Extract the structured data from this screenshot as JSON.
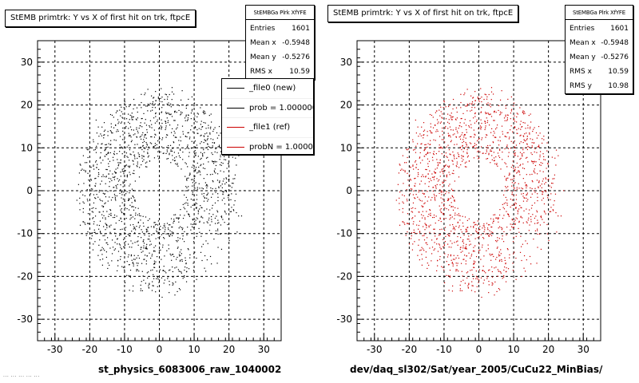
{
  "chart_data": [
    {
      "type": "scatter",
      "title": "StEMB primtrk: Y vs X of first hit on trk, ftpcE",
      "xlabel": "st_physics_6083006_raw_1040002",
      "ylabel": "",
      "xlim": [
        -35,
        35
      ],
      "ylim": [
        -35,
        35
      ],
      "xticks": [
        "-30",
        "-20",
        "-10",
        "0",
        "10",
        "20",
        "30"
      ],
      "yticks": [
        "-30",
        "-20",
        "-10",
        "0",
        "10",
        "20",
        "30"
      ],
      "grid": true,
      "marker_color": "#000000",
      "stats": {
        "name": "StEMBGa Plrk XfYFE",
        "rows": [
          {
            "label": "Entries",
            "value": "1601"
          },
          {
            "label": "Mean x",
            "value": "-0.5948"
          },
          {
            "label": "Mean y",
            "value": "-0.5276"
          },
          {
            "label": "RMS x",
            "value": "10.59"
          }
        ]
      },
      "legend": [
        {
          "label": "_file0 (new)",
          "color": "#000000"
        },
        {
          "label": "prob = 1.000000",
          "color": "#000000"
        },
        {
          "label": "_file1 (ref)",
          "color": "#cc0000"
        },
        {
          "label": "probN = 1.000000",
          "color": "#cc0000"
        }
      ],
      "legend_position": "top-right"
    },
    {
      "type": "scatter",
      "title": "StEMB primtrk: Y vs X of first hit on trk, ftpcE",
      "xlabel": "dev/daq_sl302/Sat/year_2005/CuCu22_MinBias/",
      "ylabel": "",
      "xlim": [
        -35,
        35
      ],
      "ylim": [
        -35,
        35
      ],
      "xticks": [
        "-30",
        "-20",
        "-10",
        "0",
        "10",
        "20",
        "30"
      ],
      "yticks": [
        "-30",
        "-20",
        "-10",
        "0",
        "10",
        "20",
        "30"
      ],
      "grid": true,
      "marker_color": "#cc0000",
      "stats": {
        "name": "StEMBGa Plrk XfYFE",
        "rows": [
          {
            "label": "Entries",
            "value": "1601"
          },
          {
            "label": "Mean x",
            "value": "-0.5948"
          },
          {
            "label": "Mean y",
            "value": "-0.5276"
          },
          {
            "label": "RMS x",
            "value": "10.59"
          },
          {
            "label": "RMS y",
            "value": "10.98"
          }
        ]
      }
    }
  ],
  "footer_note": "... ... ... ... ..."
}
